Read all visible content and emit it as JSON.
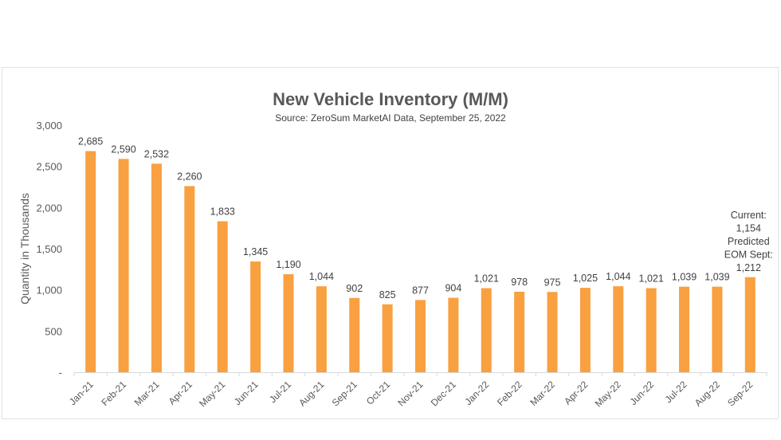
{
  "chart_data": {
    "type": "bar",
    "title": "New Vehicle Inventory (M/M)",
    "subtitle": "Source: ZeroSum MarketAI Data, September 25, 2022",
    "xlabel": "",
    "ylabel": "Quantity in Thousands",
    "ylim": [
      0,
      3000
    ],
    "yticks": [
      0,
      500,
      1000,
      1500,
      2000,
      2500,
      3000
    ],
    "ytick_labels": [
      "-",
      "500",
      "1,000",
      "1,500",
      "2,000",
      "2,500",
      "3,000"
    ],
    "grid": false,
    "bar_color": "#F9A040",
    "categories": [
      "Jan-21",
      "Feb-21",
      "Mar-21",
      "Apr-21",
      "May-21",
      "Jun-21",
      "Jul-21",
      "Aug-21",
      "Sep-21",
      "Oct-21",
      "Nov-21",
      "Dec-21",
      "Jan-22",
      "Feb-22",
      "Mar-22",
      "Apr-22",
      "May-22",
      "Jun-22",
      "Jul-22",
      "Aug-22",
      "Sep-22"
    ],
    "values": [
      2685,
      2590,
      2532,
      2260,
      1833,
      1345,
      1190,
      1044,
      902,
      825,
      877,
      904,
      1021,
      978,
      975,
      1025,
      1044,
      1021,
      1039,
      1039,
      1154
    ],
    "data_labels": [
      "2,685",
      "2,590",
      "2,532",
      "2,260",
      "1,833",
      "1,345",
      "1,190",
      "1,044",
      "902",
      "825",
      "877",
      "904",
      "1,021",
      "978",
      "975",
      "1,025",
      "1,044",
      "1,021",
      "1,039",
      "1,039",
      ""
    ],
    "annotation": {
      "category": "Sep-22",
      "lines": [
        "Current:",
        "1,154",
        "Predicted",
        "EOM Sept:",
        "1,212"
      ]
    }
  }
}
